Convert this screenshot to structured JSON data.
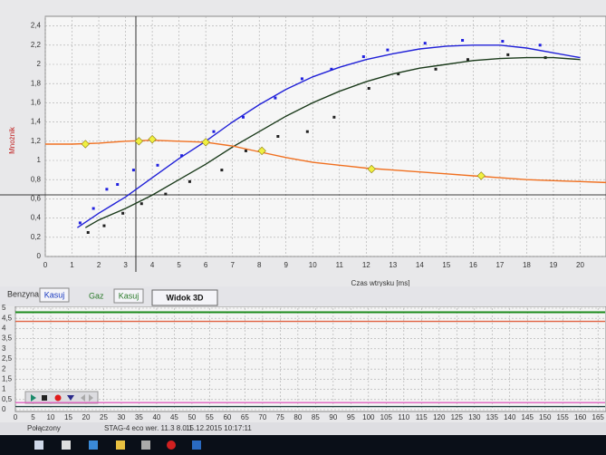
{
  "chart_data": [
    {
      "type": "line",
      "x_label": "Czas wtrysku [ms]",
      "y_label": "Mnożnik",
      "xlim": [
        0,
        21
      ],
      "ylim": [
        0,
        2.5
      ],
      "xticks": [
        0,
        1,
        2,
        3,
        4,
        5,
        6,
        7,
        8,
        9,
        10,
        11,
        12,
        13,
        14,
        15,
        16,
        17,
        18,
        19,
        20
      ],
      "yticks": [
        0,
        {
          "value": 0.2,
          "label": "0,2"
        },
        {
          "value": 0.4,
          "label": "0,4"
        },
        {
          "value": 0.6,
          "label": "0,6"
        },
        {
          "value": 0.8,
          "label": "0,8"
        },
        1,
        {
          "value": 1.2,
          "label": "1,2"
        },
        {
          "value": 1.4,
          "label": "1,4"
        },
        {
          "value": 1.6,
          "label": "1,6"
        },
        {
          "value": 1.8,
          "label": "1,8"
        },
        2,
        {
          "value": 2.2,
          "label": "2,2"
        },
        {
          "value": 2.4,
          "label": "2,4"
        }
      ],
      "grid": true,
      "series": [
        {
          "style": "points",
          "color": "#2020e0",
          "x": [
            1.3,
            1.8,
            2.3,
            2.7,
            3.3,
            4.2,
            5.1,
            6.3,
            7.4,
            8.6,
            9.6,
            10.7,
            11.9,
            12.8,
            14.2,
            15.6,
            17.1,
            18.5
          ],
          "values": [
            0.35,
            0.5,
            0.7,
            0.75,
            0.9,
            0.95,
            1.05,
            1.3,
            1.45,
            1.65,
            1.85,
            1.95,
            2.08,
            2.15,
            2.22,
            2.25,
            2.24,
            2.2
          ]
        },
        {
          "style": "points",
          "color": "#202020",
          "x": [
            1.6,
            2.2,
            2.9,
            3.6,
            4.5,
            5.4,
            6.6,
            7.5,
            8.7,
            9.8,
            10.8,
            12.1,
            13.2,
            14.6,
            15.8,
            17.3,
            18.7
          ],
          "values": [
            0.25,
            0.32,
            0.45,
            0.55,
            0.65,
            0.78,
            0.9,
            1.1,
            1.25,
            1.3,
            1.45,
            1.75,
            1.9,
            1.95,
            2.05,
            2.1,
            2.07
          ]
        },
        {
          "style": "line",
          "color": "#2020d8",
          "x": [
            1.2,
            2,
            3,
            4,
            5,
            6,
            7,
            8,
            9,
            10,
            11,
            12,
            13,
            14,
            15,
            16,
            17,
            18,
            19,
            20
          ],
          "values": [
            0.3,
            0.45,
            0.62,
            0.82,
            1.02,
            1.2,
            1.4,
            1.58,
            1.74,
            1.87,
            1.97,
            2.05,
            2.11,
            2.16,
            2.19,
            2.2,
            2.2,
            2.17,
            2.12,
            2.07
          ]
        },
        {
          "style": "line",
          "color": "#1a3a1a",
          "x": [
            1.5,
            2,
            3,
            4,
            5,
            6,
            7,
            8,
            9,
            10,
            11,
            12,
            13,
            14,
            15,
            16,
            17,
            18,
            19,
            20
          ],
          "values": [
            0.3,
            0.38,
            0.5,
            0.64,
            0.8,
            0.96,
            1.14,
            1.3,
            1.46,
            1.6,
            1.72,
            1.82,
            1.9,
            1.96,
            2.0,
            2.04,
            2.06,
            2.07,
            2.07,
            2.05
          ]
        },
        {
          "style": "line",
          "color": "#f07020",
          "x": [
            0,
            1,
            2,
            3,
            4,
            5,
            6,
            7,
            8,
            9,
            10,
            11,
            12,
            13,
            14,
            15,
            16,
            17,
            18,
            19,
            20,
            21
          ],
          "values": [
            1.17,
            1.17,
            1.18,
            1.2,
            1.21,
            1.2,
            1.19,
            1.15,
            1.09,
            1.03,
            0.98,
            0.95,
            0.92,
            0.9,
            0.88,
            0.86,
            0.84,
            0.82,
            0.8,
            0.79,
            0.78,
            0.77
          ]
        },
        {
          "style": "points",
          "color": "#f0f040",
          "x": [
            1.5,
            3.5,
            4,
            6,
            8.1,
            12.2,
            16.3
          ],
          "values": [
            1.17,
            1.2,
            1.22,
            1.19,
            1.1,
            0.91,
            0.84
          ]
        }
      ]
    },
    {
      "type": "line",
      "xlim": [
        0,
        167
      ],
      "ylim": [
        0,
        5
      ],
      "xticks": [
        0,
        5,
        10,
        15,
        20,
        25,
        30,
        35,
        40,
        45,
        50,
        55,
        60,
        65,
        70,
        75,
        80,
        85,
        90,
        95,
        100,
        105,
        110,
        115,
        120,
        125,
        130,
        135,
        140,
        145,
        150,
        155,
        160,
        165
      ],
      "yticks": [
        0,
        {
          "value": 0.5,
          "label": "0,5"
        },
        1,
        {
          "value": 1.5,
          "label": "1,5"
        },
        2,
        {
          "value": 2.5,
          "label": "2,5"
        },
        3,
        {
          "value": 3.5,
          "label": "3,5"
        },
        4,
        {
          "value": 4.5,
          "label": "4,5"
        },
        5
      ],
      "grid": true,
      "series": [
        {
          "style": "line",
          "color": "#1a8a1a",
          "x": [
            0,
            167
          ],
          "values": [
            4.8,
            4.8
          ]
        },
        {
          "style": "line",
          "color": "#e06040",
          "x": [
            0,
            167
          ],
          "values": [
            4.35,
            4.35
          ]
        },
        {
          "style": "line",
          "color": "#e060c0",
          "x": [
            0,
            167
          ],
          "values": [
            0.35,
            0.35
          ]
        },
        {
          "style": "line",
          "color": "#204040",
          "x": [
            0,
            167
          ],
          "values": [
            0.15,
            0.15
          ]
        }
      ]
    }
  ],
  "toolbar": {
    "petrol": "Benzyna",
    "petrol_clear": "Kasuj",
    "gas": "Gaz",
    "gas_clear": "Kasuj",
    "view3d": "Widok 3D"
  },
  "status": {
    "connection": "Połączony",
    "device": "STAG-4 eco  wer. 11.3 8.0.1",
    "datetime": "15.12.2015 10:17:11"
  }
}
